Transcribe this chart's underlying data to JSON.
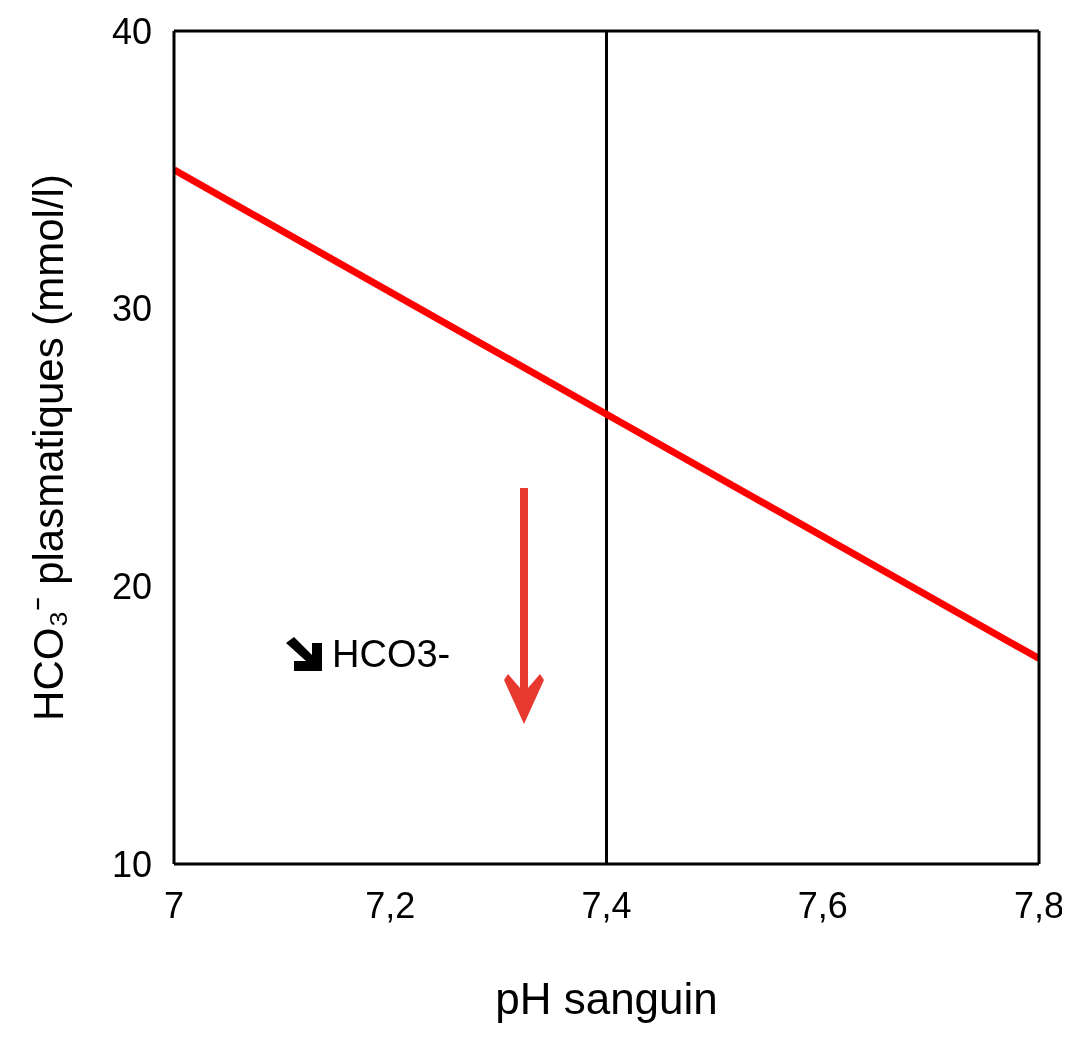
{
  "chart_data": {
    "type": "line",
    "xlabel": "pH sanguin",
    "ylabel": "HCO₃⁻ plasmatiques (mmol/l)",
    "x": [
      7,
      7.4,
      7.8
    ],
    "series": [
      {
        "color": "#ff0000",
        "values": [
          35,
          26.2,
          17.4
        ]
      }
    ],
    "xlim": [
      7,
      7.8
    ],
    "xticks": [
      7,
      {
        "value": 7.2,
        "label": "7,2"
      },
      {
        "value": 7.4,
        "label": "7,4"
      },
      {
        "value": 7.6,
        "label": "7,6"
      },
      {
        "value": 7.8,
        "label": "7,8"
      }
    ],
    "ylim": [
      10,
      40
    ],
    "yticks": [
      10,
      20,
      30,
      40
    ],
    "ref_lines": [
      {
        "axis": "x",
        "value": 7.4,
        "color": "#000000"
      }
    ],
    "annotations": [
      "HCO3-"
    ],
    "grid": false,
    "marker": "none",
    "line_style": "solid"
  }
}
